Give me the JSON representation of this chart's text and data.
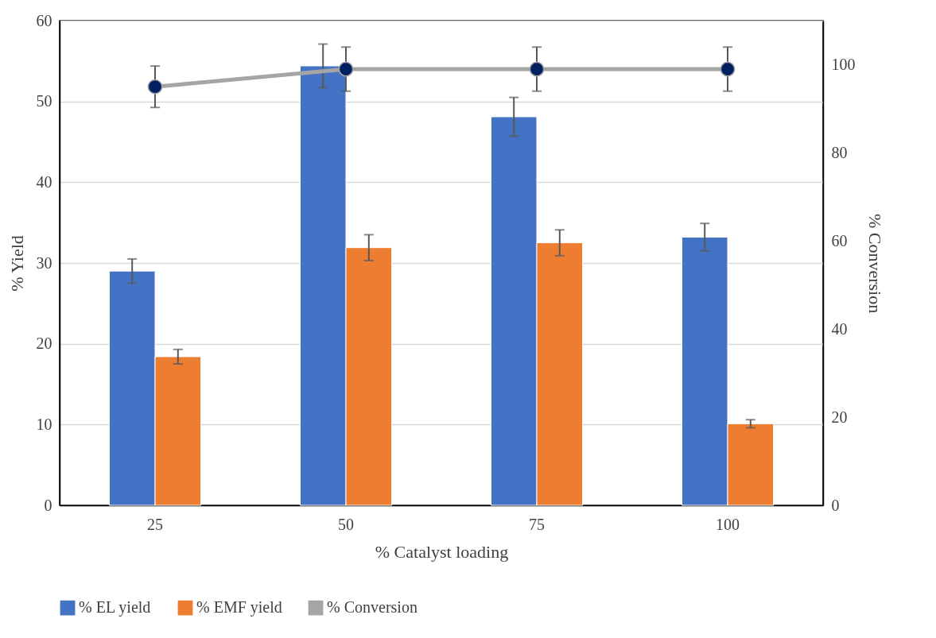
{
  "chart_data": {
    "type": "bar",
    "xlabel": "% Catalyst loading",
    "ylabel": "% Yield",
    "y2label": "% Conversion",
    "categories": [
      "25",
      "50",
      "75",
      "100"
    ],
    "ylim": [
      0,
      60
    ],
    "yticks": [
      0,
      10,
      20,
      30,
      40,
      50,
      60
    ],
    "y2lim": [
      0,
      110
    ],
    "y2ticks": [
      0,
      20,
      40,
      60,
      80,
      100
    ],
    "grid": "y",
    "legend": "bottom",
    "marker": "circle",
    "series": [
      {
        "name": "% EL yield",
        "color": "#4472c4",
        "values": [
          29.0,
          54.4,
          48.1,
          33.2
        ],
        "errors": [
          1.5,
          2.7,
          2.4,
          1.7
        ]
      },
      {
        "name": "% EMF yield",
        "color": "#ed7d31",
        "values": [
          18.4,
          31.9,
          32.5,
          10.1
        ],
        "errors": [
          0.9,
          1.6,
          1.6,
          0.5
        ]
      },
      {
        "name": "% Conversion",
        "type": "line",
        "axis": "y2",
        "color": "#a5a5a5",
        "colors": [
          "#002060",
          "#002060",
          "#002060",
          "#002060"
        ],
        "values": [
          95,
          99,
          99,
          99
        ],
        "errors": [
          4.7,
          5,
          5,
          5
        ]
      }
    ]
  }
}
